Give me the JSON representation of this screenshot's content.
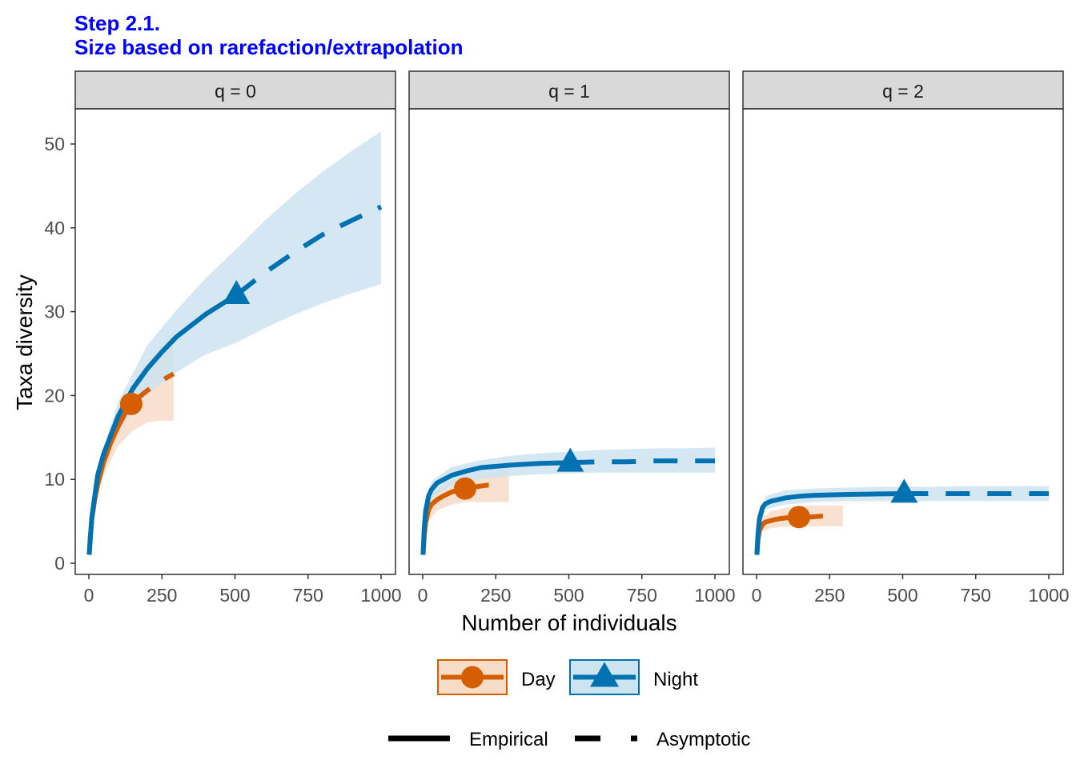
{
  "chart_data": {
    "type": "line",
    "title": "Step 2.1.",
    "subtitle": "Size based on rarefaction/extrapolation",
    "xlabel": "Number of individuals",
    "ylabel": "Taxa diversity",
    "xlim": [
      0,
      1000
    ],
    "ylim": [
      0,
      52
    ],
    "x_ticks": [
      0,
      250,
      500,
      750,
      1000
    ],
    "y_ticks": [
      0,
      10,
      20,
      30,
      40,
      50
    ],
    "grid": false,
    "legend_position": "bottom",
    "colors": {
      "Day": "#D55E00",
      "Night": "#0072B2",
      "Day_band": "#F7DCC8",
      "Night_band": "#CCE3F0",
      "title": "#0000FF",
      "strip": "#D9D9D9"
    },
    "legend": {
      "groups": [
        "Day",
        "Night"
      ],
      "linetypes": [
        "Empirical",
        "Asymptotic"
      ]
    },
    "panels": [
      {
        "label": "q = 0",
        "series": [
          {
            "name": "Day",
            "marker": "circle",
            "observed": {
              "x": 145,
              "y": 19.0
            },
            "rarefaction": {
              "x": [
                1,
                5,
                10,
                20,
                30,
                50,
                75,
                100,
                125,
                145
              ],
              "y": [
                1,
                3.2,
                5.2,
                7.6,
                9.4,
                12.0,
                14.4,
                16.3,
                17.9,
                19.0
              ]
            },
            "extrapolation": {
              "x": [
                145,
                175,
                200,
                230,
                260,
                290
              ],
              "y": [
                19.0,
                19.9,
                20.6,
                21.3,
                22.0,
                22.6
              ]
            },
            "ci_lower": {
              "x": [
                1,
                20,
                50,
                100,
                150,
                200,
                250,
                290
              ],
              "y": [
                1,
                6.5,
                10.5,
                14.0,
                15.8,
                16.8,
                17.0,
                17.0
              ]
            },
            "ci_upper": {
              "x": [
                1,
                20,
                50,
                100,
                150,
                200,
                250,
                290
              ],
              "y": [
                1.5,
                9.0,
                13.5,
                18.2,
                21.5,
                24.0,
                26.0,
                27.5
              ]
            }
          },
          {
            "name": "Night",
            "marker": "triangle",
            "observed": {
              "x": 505,
              "y": 32.0
            },
            "rarefaction": {
              "x": [
                1,
                10,
                30,
                50,
                100,
                150,
                200,
                250,
                300,
                400,
                505
              ],
              "y": [
                1,
                5.5,
                10.5,
                13.0,
                17.5,
                20.8,
                23.2,
                25.2,
                27.0,
                29.7,
                32.0
              ]
            },
            "extrapolation": {
              "x": [
                505,
                600,
                700,
                800,
                900,
                1000
              ],
              "y": [
                32.0,
                34.6,
                37.0,
                39.2,
                40.9,
                42.5
              ]
            },
            "ci_lower": {
              "x": [
                1,
                30,
                100,
                200,
                300,
                400,
                505,
                600,
                700,
                800,
                900,
                1000
              ],
              "y": [
                1,
                9.5,
                15.8,
                20.2,
                22.8,
                24.9,
                26.3,
                28.0,
                29.6,
                31.0,
                32.2,
                33.3
              ]
            },
            "ci_upper": {
              "x": [
                1,
                30,
                100,
                200,
                300,
                400,
                505,
                600,
                700,
                800,
                900,
                1000
              ],
              "y": [
                1.5,
                11.5,
                19.2,
                26.0,
                30.2,
                34.0,
                37.5,
                40.8,
                43.9,
                46.7,
                49.2,
                51.5
              ]
            }
          }
        ]
      },
      {
        "label": "q = 1",
        "series": [
          {
            "name": "Day",
            "marker": "circle",
            "observed": {
              "x": 145,
              "y": 8.9
            },
            "rarefaction": {
              "x": [
                1,
                5,
                10,
                20,
                30,
                50,
                75,
                100,
                145
              ],
              "y": [
                1,
                3.0,
                4.8,
                6.4,
                7.0,
                7.6,
                8.1,
                8.5,
                8.9
              ]
            },
            "extrapolation": {
              "x": [
                145,
                180,
                220,
                240
              ],
              "y": [
                8.9,
                9.1,
                9.3,
                9.3
              ]
            },
            "ci_lower": {
              "x": [
                1,
                20,
                50,
                100,
                150,
                200,
                250,
                295
              ],
              "y": [
                1,
                5.0,
                6.3,
                7.0,
                7.3,
                7.3,
                7.3,
                7.3
              ]
            },
            "ci_upper": {
              "x": [
                1,
                20,
                50,
                100,
                150,
                200,
                250,
                295
              ],
              "y": [
                1.5,
                7.5,
                8.8,
                9.8,
                10.4,
                10.8,
                11.1,
                11.3
              ]
            }
          },
          {
            "name": "Night",
            "marker": "triangle",
            "observed": {
              "x": 505,
              "y": 12.0
            },
            "rarefaction": {
              "x": [
                1,
                5,
                10,
                20,
                30,
                50,
                100,
                150,
                200,
                300,
                400,
                505
              ],
              "y": [
                1,
                4.0,
                6.2,
                8.0,
                8.8,
                9.6,
                10.5,
                11.0,
                11.4,
                11.7,
                11.9,
                12.0
              ]
            },
            "extrapolation": {
              "x": [
                505,
                600,
                700,
                800,
                900,
                1000
              ],
              "y": [
                12.0,
                12.1,
                12.1,
                12.2,
                12.2,
                12.2
              ]
            },
            "ci_lower": {
              "x": [
                1,
                30,
                100,
                200,
                300,
                400,
                505,
                600,
                700,
                800,
                900,
                1000
              ],
              "y": [
                1,
                7.8,
                9.3,
                10.1,
                10.4,
                10.6,
                10.7,
                10.8,
                10.8,
                10.8,
                10.8,
                10.8
              ]
            },
            "ci_upper": {
              "x": [
                1,
                30,
                100,
                200,
                300,
                400,
                505,
                600,
                700,
                800,
                900,
                1000
              ],
              "y": [
                1.5,
                9.8,
                11.5,
                12.3,
                12.8,
                13.1,
                13.3,
                13.5,
                13.6,
                13.7,
                13.7,
                13.8
              ]
            }
          }
        ]
      },
      {
        "label": "q = 2",
        "series": [
          {
            "name": "Day",
            "marker": "circle",
            "observed": {
              "x": 145,
              "y": 5.5
            },
            "rarefaction": {
              "x": [
                1,
                5,
                10,
                20,
                30,
                50,
                75,
                100,
                145
              ],
              "y": [
                1,
                2.8,
                3.9,
                4.6,
                4.9,
                5.1,
                5.3,
                5.4,
                5.5
              ]
            },
            "extrapolation": {
              "x": [
                145,
                180,
                220,
                240
              ],
              "y": [
                5.5,
                5.5,
                5.6,
                5.6
              ]
            },
            "ci_lower": {
              "x": [
                1,
                20,
                50,
                100,
                150,
                200,
                250,
                295
              ],
              "y": [
                1,
                3.8,
                4.2,
                4.4,
                4.4,
                4.4,
                4.4,
                4.4
              ]
            },
            "ci_upper": {
              "x": [
                1,
                20,
                50,
                100,
                150,
                200,
                250,
                295
              ],
              "y": [
                1.5,
                5.5,
                6.2,
                6.6,
                6.8,
                6.9,
                6.9,
                6.9
              ]
            }
          },
          {
            "name": "Night",
            "marker": "triangle",
            "observed": {
              "x": 505,
              "y": 8.3
            },
            "rarefaction": {
              "x": [
                1,
                5,
                10,
                20,
                30,
                50,
                100,
                150,
                200,
                300,
                400,
                505
              ],
              "y": [
                1,
                3.5,
                5.3,
                6.6,
                7.1,
                7.4,
                7.8,
                8.0,
                8.1,
                8.2,
                8.25,
                8.3
              ]
            },
            "extrapolation": {
              "x": [
                505,
                600,
                700,
                800,
                900,
                1000
              ],
              "y": [
                8.3,
                8.3,
                8.3,
                8.3,
                8.3,
                8.3
              ]
            },
            "ci_lower": {
              "x": [
                1,
                30,
                100,
                200,
                300,
                400,
                505,
                600,
                700,
                800,
                900,
                1000
              ],
              "y": [
                1,
                6.4,
                7.0,
                7.3,
                7.4,
                7.4,
                7.4,
                7.4,
                7.4,
                7.4,
                7.4,
                7.4
              ]
            },
            "ci_upper": {
              "x": [
                1,
                30,
                100,
                200,
                300,
                400,
                505,
                600,
                700,
                800,
                900,
                1000
              ],
              "y": [
                1.5,
                8.0,
                8.7,
                8.9,
                9.0,
                9.1,
                9.1,
                9.1,
                9.2,
                9.2,
                9.2,
                9.2
              ]
            }
          }
        ]
      }
    ]
  }
}
